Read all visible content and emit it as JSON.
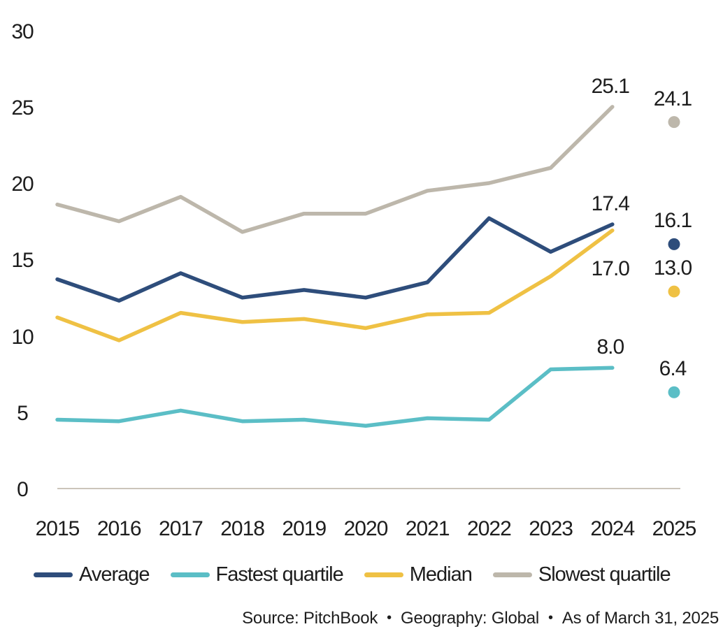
{
  "chart_data": {
    "type": "line",
    "title": "",
    "xlabel": "",
    "ylabel": "",
    "xticks": [
      "2015",
      "2016",
      "2017",
      "2018",
      "2019",
      "2020",
      "2021",
      "2022",
      "2023",
      "2024",
      "2025"
    ],
    "yticks": [
      0,
      5,
      10,
      15,
      20,
      25,
      30
    ],
    "ylim": [
      0,
      30
    ],
    "grid": false,
    "legend_position": "bottom",
    "note": "Series lines cover 2015-2024; 2025 values are plotted as isolated dots with labels",
    "axis_color": "#CBC5BA",
    "text_color": "#1d1d1d",
    "series": [
      {
        "name": "Average",
        "color": "#2E4D7B",
        "values": [
          13.8,
          12.4,
          14.2,
          12.6,
          13.1,
          12.6,
          13.6,
          17.8,
          15.6,
          17.4
        ],
        "end_label": "17.4",
        "end_label_side": "above",
        "value_2025": 16.1,
        "label_2025": "16.1"
      },
      {
        "name": "Fastest quartile",
        "color": "#5BBEC6",
        "values": [
          4.6,
          4.5,
          5.2,
          4.5,
          4.6,
          4.2,
          4.7,
          4.6,
          7.9,
          8.0
        ],
        "end_label": "8.0",
        "end_label_side": "above",
        "value_2025": 6.4,
        "label_2025": "6.4"
      },
      {
        "name": "Median",
        "color": "#EFC144",
        "values": [
          11.3,
          9.8,
          11.6,
          11.0,
          11.2,
          10.6,
          11.5,
          11.6,
          14.0,
          17.0
        ],
        "end_label": "17.0",
        "end_label_side": "below",
        "value_2025": 13.0,
        "label_2025": "13.0"
      },
      {
        "name": "Slowest quartile",
        "color": "#BDB7AB",
        "values": [
          18.7,
          17.6,
          19.2,
          16.9,
          18.1,
          18.1,
          19.6,
          20.1,
          21.1,
          25.1
        ],
        "end_label": "25.1",
        "end_label_side": "above",
        "value_2025": 24.1,
        "label_2025": "24.1"
      }
    ]
  },
  "footer": {
    "bullet": "•",
    "source_parts": [
      "Source: PitchBook",
      "Geography: Global",
      "As of March 31, 2025"
    ]
  }
}
